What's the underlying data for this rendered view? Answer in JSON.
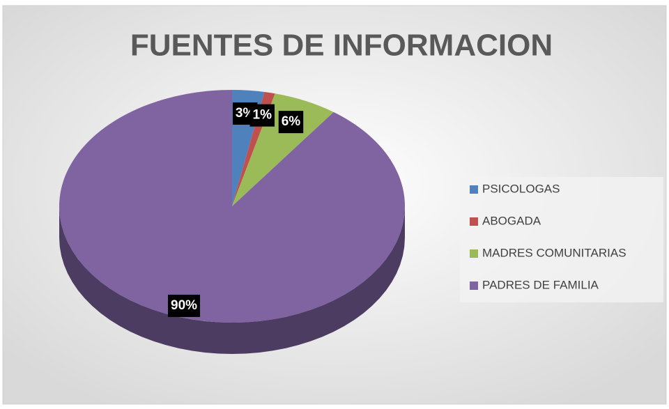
{
  "chart_data": {
    "type": "pie",
    "title": "FUENTES DE INFORMACION",
    "categories": [
      "PSICOLOGAS",
      "ABOGADA",
      "MADRES COMUNITARIAS",
      "PADRES DE FAMILIA"
    ],
    "values": [
      3,
      1,
      6,
      90
    ],
    "value_labels": [
      "3%",
      "1%",
      "6%",
      "90%"
    ],
    "colors": [
      "#4f81bd",
      "#c0504d",
      "#9bbb59",
      "#8064a2"
    ],
    "legend": "right"
  }
}
